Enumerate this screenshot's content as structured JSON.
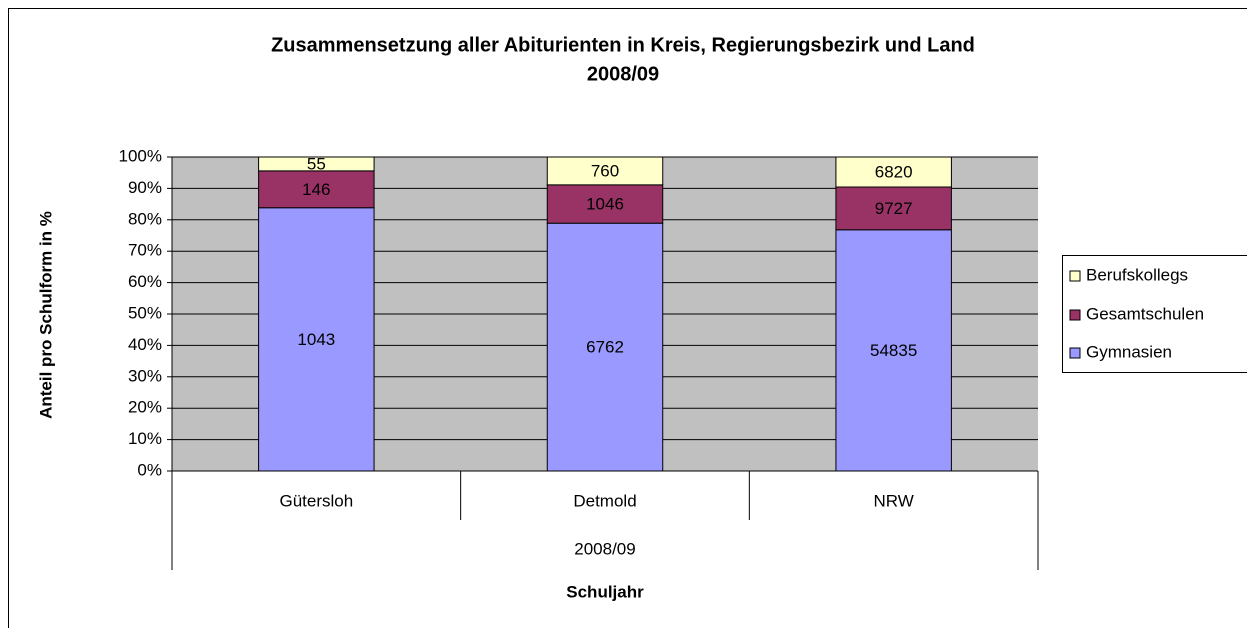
{
  "chart_data": {
    "type": "bar",
    "stacking": "percent",
    "title": [
      "Zusammensetzung aller Abiturienten in Kreis, Regierungsbezirk und Land",
      "2008/09"
    ],
    "y_label": "Anteil pro Schulform in %",
    "x_label": "Schuljahr",
    "group_label": "2008/09",
    "categories": [
      "Gütersloh",
      "Detmold",
      "NRW"
    ],
    "series": [
      {
        "name": "Gymnasien",
        "color": "#9999ff",
        "values": [
          1043,
          6762,
          54835
        ]
      },
      {
        "name": "Gesamtschulen",
        "color": "#993366",
        "values": [
          146,
          1046,
          9727
        ]
      },
      {
        "name": "Berufskollegs",
        "color": "#ffffcc",
        "values": [
          55,
          760,
          6820
        ]
      }
    ],
    "ylim": [
      0,
      100
    ],
    "yticks": [
      {
        "value": 0,
        "label": "0%"
      },
      {
        "value": 10,
        "label": "10%"
      },
      {
        "value": 20,
        "label": "20%"
      },
      {
        "value": 30,
        "label": "30%"
      },
      {
        "value": 40,
        "label": "40%"
      },
      {
        "value": 50,
        "label": "50%"
      },
      {
        "value": 60,
        "label": "60%"
      },
      {
        "value": 70,
        "label": "70%"
      },
      {
        "value": 80,
        "label": "80%"
      },
      {
        "value": 90,
        "label": "90%"
      },
      {
        "value": 100,
        "label": "100%"
      }
    ],
    "grid": true,
    "plot_background": "#c0c0c0",
    "legend": "right"
  }
}
